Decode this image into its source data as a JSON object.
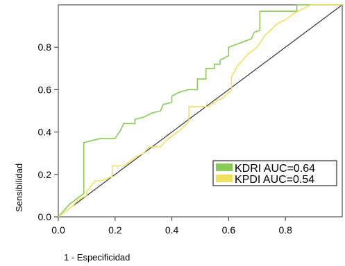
{
  "chart_data": {
    "type": "line",
    "xlabel": "1 - Especificidad",
    "ylabel": "Sensibilidad",
    "xlim": [
      0,
      1
    ],
    "ylim": [
      0,
      1
    ],
    "x_ticks": [
      0.0,
      0.2,
      0.4,
      0.6,
      0.8
    ],
    "x_tick_labels": [
      "0.0",
      "0.2",
      "0.4",
      "0.6",
      "0.8"
    ],
    "y_ticks": [
      0.0,
      0.2,
      0.4,
      0.6,
      0.8
    ],
    "y_tick_labels": [
      "0.0",
      "0.2",
      "0.4",
      "0.6",
      "0.8"
    ],
    "grid": false,
    "legend_position": "lower-right",
    "series": [
      {
        "name": "KDRI AUC=0.64",
        "color": "#88cc55",
        "points": [
          [
            0.0,
            0.0
          ],
          [
            0.02,
            0.03
          ],
          [
            0.04,
            0.06
          ],
          [
            0.06,
            0.08
          ],
          [
            0.08,
            0.1
          ],
          [
            0.09,
            0.11
          ],
          [
            0.09,
            0.35
          ],
          [
            0.12,
            0.36
          ],
          [
            0.15,
            0.37
          ],
          [
            0.2,
            0.37
          ],
          [
            0.22,
            0.41
          ],
          [
            0.23,
            0.44
          ],
          [
            0.27,
            0.44
          ],
          [
            0.27,
            0.46
          ],
          [
            0.3,
            0.47
          ],
          [
            0.33,
            0.49
          ],
          [
            0.36,
            0.5
          ],
          [
            0.37,
            0.53
          ],
          [
            0.4,
            0.54
          ],
          [
            0.4,
            0.57
          ],
          [
            0.43,
            0.59
          ],
          [
            0.46,
            0.6
          ],
          [
            0.49,
            0.6
          ],
          [
            0.49,
            0.65
          ],
          [
            0.52,
            0.65
          ],
          [
            0.52,
            0.7
          ],
          [
            0.55,
            0.7
          ],
          [
            0.55,
            0.72
          ],
          [
            0.57,
            0.72
          ],
          [
            0.57,
            0.74
          ],
          [
            0.6,
            0.76
          ],
          [
            0.6,
            0.8
          ],
          [
            0.64,
            0.82
          ],
          [
            0.66,
            0.83
          ],
          [
            0.68,
            0.84
          ],
          [
            0.69,
            0.87
          ],
          [
            0.71,
            0.88
          ],
          [
            0.71,
            0.97
          ],
          [
            0.84,
            0.97
          ],
          [
            0.84,
            1.0
          ],
          [
            1.0,
            1.0
          ]
        ]
      },
      {
        "name": "KPDI AUC=0.54",
        "color": "#f0e060",
        "points": [
          [
            0.0,
            0.0
          ],
          [
            0.05,
            0.05
          ],
          [
            0.07,
            0.08
          ],
          [
            0.1,
            0.1
          ],
          [
            0.1,
            0.12
          ],
          [
            0.13,
            0.17
          ],
          [
            0.15,
            0.17
          ],
          [
            0.19,
            0.19
          ],
          [
            0.19,
            0.24
          ],
          [
            0.23,
            0.24
          ],
          [
            0.27,
            0.28
          ],
          [
            0.3,
            0.3
          ],
          [
            0.32,
            0.33
          ],
          [
            0.36,
            0.33
          ],
          [
            0.38,
            0.36
          ],
          [
            0.4,
            0.38
          ],
          [
            0.43,
            0.41
          ],
          [
            0.46,
            0.45
          ],
          [
            0.46,
            0.52
          ],
          [
            0.53,
            0.52
          ],
          [
            0.56,
            0.55
          ],
          [
            0.58,
            0.56
          ],
          [
            0.61,
            0.6
          ],
          [
            0.61,
            0.66
          ],
          [
            0.63,
            0.71
          ],
          [
            0.67,
            0.77
          ],
          [
            0.7,
            0.8
          ],
          [
            0.73,
            0.86
          ],
          [
            0.74,
            0.87
          ],
          [
            0.77,
            0.91
          ],
          [
            0.8,
            0.93
          ],
          [
            0.83,
            0.96
          ],
          [
            0.86,
            0.98
          ],
          [
            0.89,
            1.0
          ],
          [
            1.0,
            1.0
          ]
        ]
      },
      {
        "name": "",
        "color": "#333333",
        "reference": true,
        "points": [
          [
            0.0,
            0.0
          ],
          [
            1.0,
            1.0
          ]
        ]
      }
    ]
  }
}
